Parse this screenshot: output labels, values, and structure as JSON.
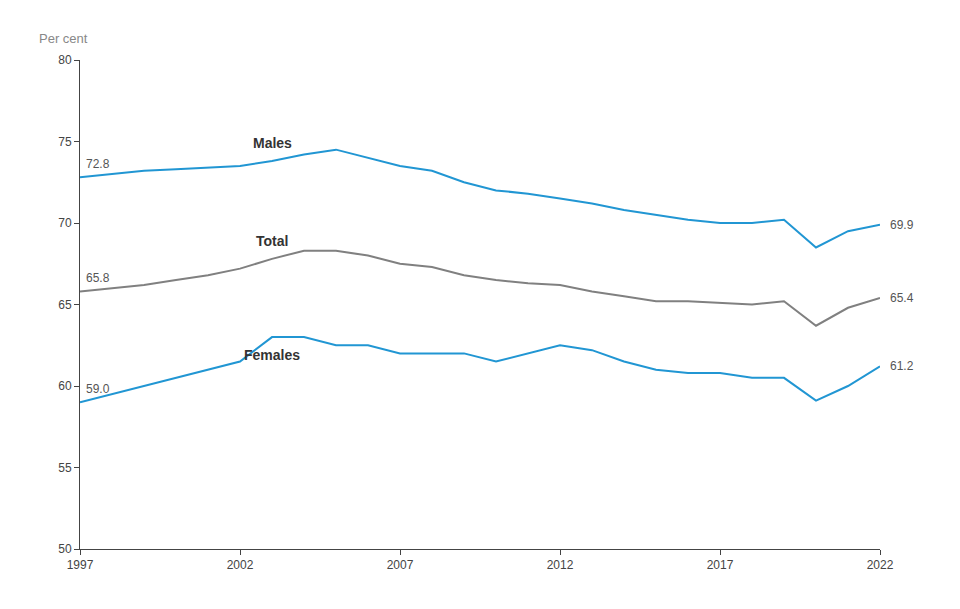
{
  "chart_data": {
    "type": "line",
    "ylabel": "Per cent",
    "x": [
      1997,
      1998,
      1999,
      2000,
      2001,
      2002,
      2003,
      2004,
      2005,
      2006,
      2007,
      2008,
      2009,
      2010,
      2011,
      2012,
      2013,
      2014,
      2015,
      2016,
      2017,
      2018,
      2019,
      2020,
      2021,
      2022
    ],
    "series": [
      {
        "name": "Males",
        "color": "#2196d3",
        "values": [
          72.8,
          73.0,
          73.2,
          73.3,
          73.4,
          73.5,
          73.8,
          74.2,
          74.5,
          74.0,
          73.5,
          73.2,
          72.5,
          72.0,
          71.8,
          71.5,
          71.2,
          70.8,
          70.5,
          70.2,
          70.0,
          70.0,
          70.2,
          68.5,
          69.5,
          69.9
        ]
      },
      {
        "name": "Total",
        "color": "#808080",
        "values": [
          65.8,
          66.0,
          66.2,
          66.5,
          66.8,
          67.2,
          67.8,
          68.3,
          68.3,
          68.0,
          67.5,
          67.3,
          66.8,
          66.5,
          66.3,
          66.2,
          65.8,
          65.5,
          65.2,
          65.2,
          65.1,
          65.0,
          65.2,
          63.7,
          64.8,
          65.4
        ]
      },
      {
        "name": "Females",
        "color": "#2196d3",
        "values": [
          59.0,
          59.5,
          60.0,
          60.5,
          61.0,
          61.5,
          63.0,
          63.0,
          62.5,
          62.5,
          62.0,
          62.0,
          62.0,
          61.5,
          62.0,
          62.5,
          62.2,
          61.5,
          61.0,
          60.8,
          60.8,
          60.5,
          60.5,
          59.1,
          60.0,
          61.2
        ]
      }
    ],
    "annotations": [
      {
        "text": "72.8",
        "x": 1997,
        "y": 72.8
      },
      {
        "text": "65.8",
        "x": 1997,
        "y": 65.8
      },
      {
        "text": "59.0",
        "x": 1997,
        "y": 59.0
      },
      {
        "text": "69.9",
        "x": 2022,
        "y": 69.9
      },
      {
        "text": "65.4",
        "x": 2022,
        "y": 65.4
      },
      {
        "text": "61.2",
        "x": 2022,
        "y": 61.2
      }
    ],
    "xlim": [
      1997,
      2022
    ],
    "xticks": [
      1997,
      2002,
      2007,
      2012,
      2017,
      2022
    ],
    "ylim": [
      50,
      80
    ],
    "yticks": [
      50,
      55,
      60,
      65,
      70,
      75,
      80
    ],
    "grid": false
  }
}
